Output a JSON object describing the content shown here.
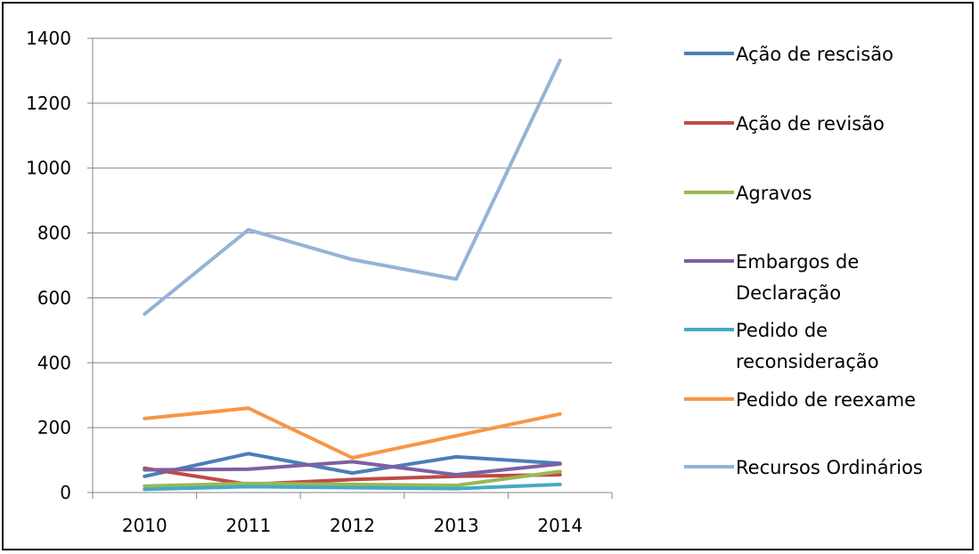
{
  "chart_data": {
    "type": "line",
    "categories": [
      "2010",
      "2011",
      "2012",
      "2013",
      "2014"
    ],
    "ylim": [
      0,
      1400
    ],
    "yticks": [
      0,
      200,
      400,
      600,
      800,
      1000,
      1200,
      1400
    ],
    "grid": true,
    "legend": "right",
    "series": [
      {
        "name": "Ação de rescisão",
        "legend_lines": [
          "Ação de rescisão"
        ],
        "color": "#4a7ebb",
        "values": [
          50,
          120,
          60,
          110,
          90
        ]
      },
      {
        "name": "Ação de revisão",
        "legend_lines": [
          "Ação de revisão"
        ],
        "color": "#be4b48",
        "values": [
          75,
          25,
          40,
          50,
          55
        ]
      },
      {
        "name": "Agravos",
        "legend_lines": [
          "Agravos"
        ],
        "color": "#98b954",
        "values": [
          20,
          28,
          25,
          22,
          65
        ]
      },
      {
        "name": "Embargos de Declaração",
        "legend_lines": [
          "Embargos de",
          "Declaração"
        ],
        "color": "#7d60a0",
        "values": [
          70,
          72,
          95,
          55,
          88
        ]
      },
      {
        "name": "Pedido de reconsideração",
        "legend_lines": [
          "Pedido de",
          "reconsideração"
        ],
        "color": "#46aac5",
        "values": [
          10,
          18,
          15,
          12,
          25
        ]
      },
      {
        "name": "Pedido de reexame",
        "legend_lines": [
          "Pedido de reexame"
        ],
        "color": "#f79646",
        "values": [
          228,
          260,
          107,
          175,
          242
        ]
      },
      {
        "name": "Recursos Ordinários",
        "legend_lines": [
          "Recursos Ordinários"
        ],
        "color": "#95b3d7",
        "values": [
          550,
          810,
          718,
          658,
          1332
        ]
      }
    ]
  }
}
